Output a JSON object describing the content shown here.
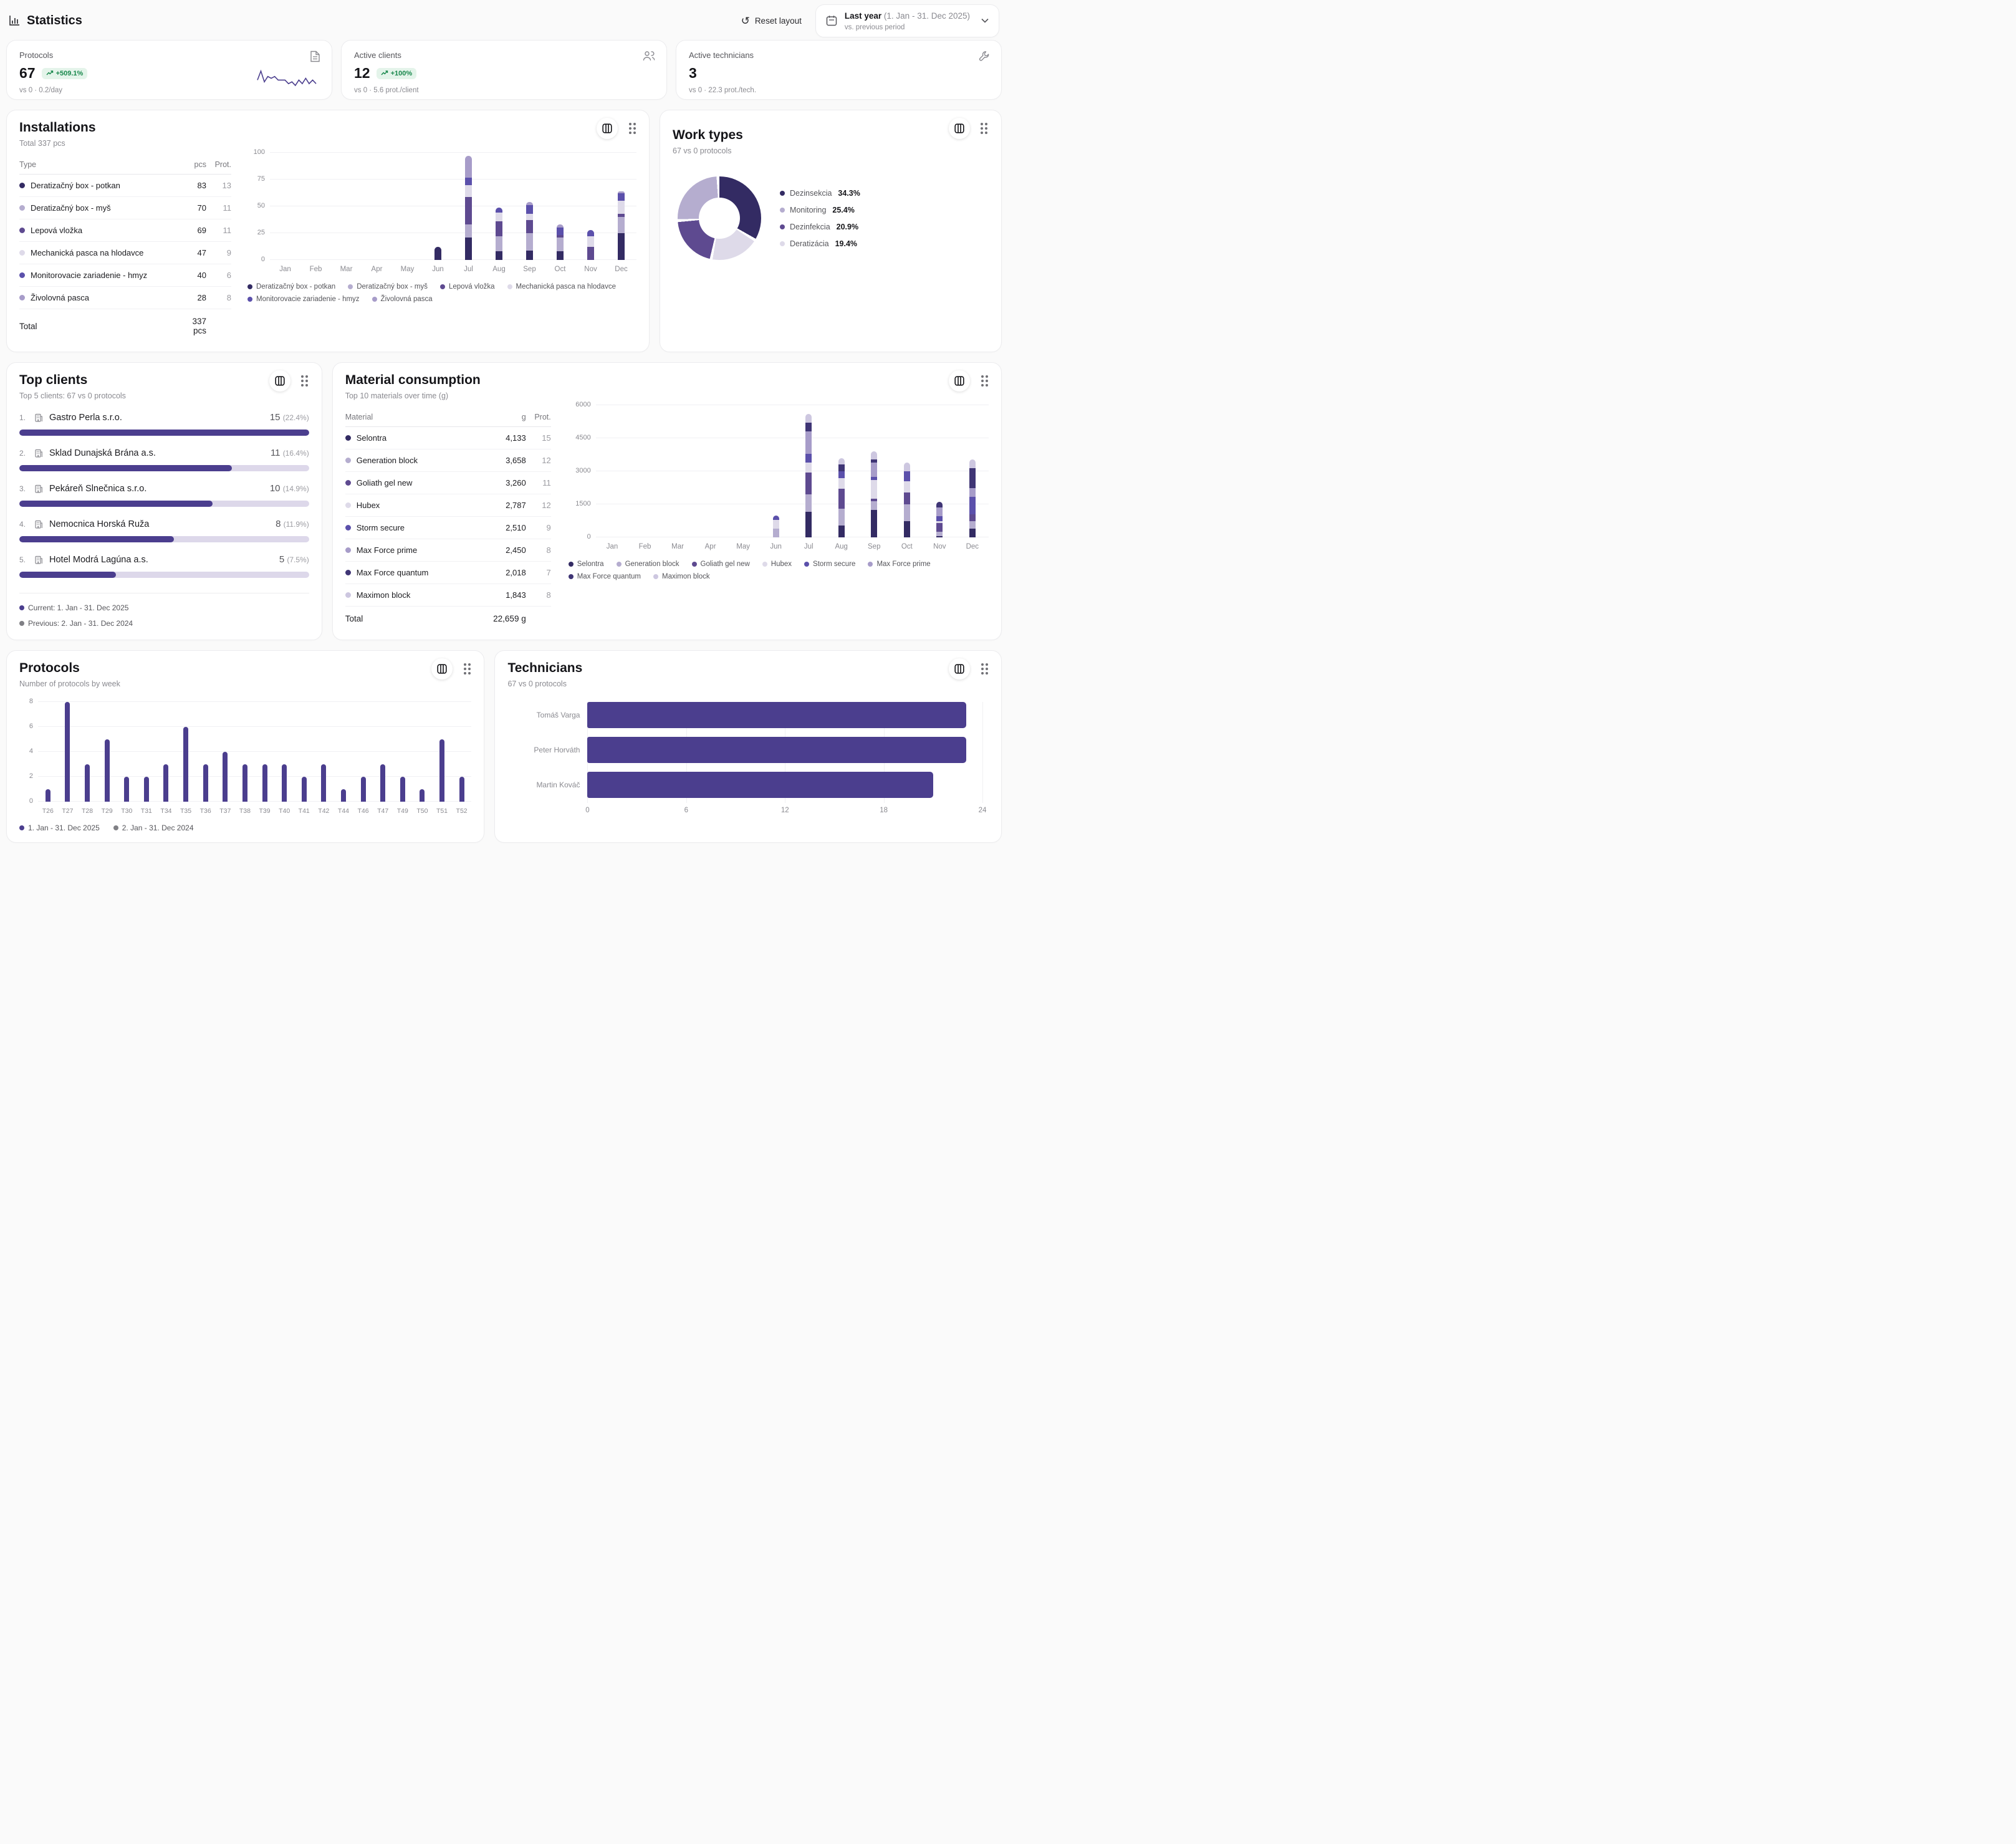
{
  "header": {
    "title": "Statistics",
    "reset_label": "Reset layout",
    "period_label": "Last year",
    "period_range": "(1. Jan - 31. Dec 2025)",
    "period_compare": "vs. previous period"
  },
  "colors": {
    "accent": "#4b3e8e",
    "green_text": "#17874b",
    "green_bg": "#e4f4ea",
    "gray_text": "#8a8a90"
  },
  "kpis": [
    {
      "label": "Protocols",
      "value": "67",
      "badge": "+509.1%",
      "sub": "vs 0 · 0.2/day",
      "icon": "document-icon",
      "sparkline": [
        4,
        9,
        3,
        6,
        5,
        6,
        4,
        4,
        4,
        2,
        3,
        1,
        4,
        2,
        5,
        2,
        4,
        2
      ]
    },
    {
      "label": "Active clients",
      "value": "12",
      "badge": "+100%",
      "sub": "vs 0 · 5.6 prot./client",
      "icon": "people-icon"
    },
    {
      "label": "Active technicians",
      "value": "3",
      "badge": "",
      "sub": "vs 0 · 22.3 prot./tech.",
      "icon": "wrench-icon"
    }
  ],
  "installations": {
    "title": "Installations",
    "subtitle": "Total 337 pcs",
    "table": {
      "headers": [
        "Type",
        "pcs",
        "Prot."
      ],
      "rows": [
        {
          "label": "Deratizačný box - potkan",
          "pcs": "83",
          "prot": "13",
          "color": "#332b63"
        },
        {
          "label": "Deratizačný box - myš",
          "pcs": "70",
          "prot": "11",
          "color": "#b5adcf"
        },
        {
          "label": "Lepová vložka",
          "pcs": "69",
          "prot": "11",
          "color": "#5e4a90"
        },
        {
          "label": "Mechanická pasca na hlodavce",
          "pcs": "47",
          "prot": "9",
          "color": "#dedae9"
        },
        {
          "label": "Monitorovacie zariadenie - hmyz",
          "pcs": "40",
          "prot": "6",
          "color": "#5b50ab"
        },
        {
          "label": "Živolovná pasca",
          "pcs": "28",
          "prot": "8",
          "color": "#a79cc9"
        }
      ],
      "total_label": "Total",
      "total_value": "337 pcs"
    },
    "chart_data": {
      "type": "bar",
      "stacked": true,
      "categories": [
        "Jan",
        "Feb",
        "Mar",
        "Apr",
        "May",
        "Jun",
        "Jul",
        "Aug",
        "Sep",
        "Oct",
        "Nov",
        "Dec"
      ],
      "ylim": [
        0,
        100
      ],
      "yticks": [
        0,
        25,
        50,
        75,
        100
      ],
      "series": [
        {
          "name": "Deratizačný box - potkan",
          "color": "#332b63",
          "values": [
            0,
            0,
            0,
            0,
            0,
            12,
            21,
            8,
            9,
            8,
            0,
            25
          ]
        },
        {
          "name": "Deratizačný box - myš",
          "color": "#b5adcf",
          "values": [
            0,
            0,
            0,
            0,
            0,
            0,
            12,
            14,
            16,
            13,
            0,
            15
          ]
        },
        {
          "name": "Lepová vložka",
          "color": "#5e4a90",
          "values": [
            0,
            0,
            0,
            0,
            0,
            0,
            26,
            14,
            12,
            2,
            12,
            3
          ]
        },
        {
          "name": "Mechanická pasca na hlodavce",
          "color": "#dedae9",
          "values": [
            0,
            0,
            0,
            0,
            0,
            0,
            11,
            8,
            6,
            0,
            10,
            12
          ]
        },
        {
          "name": "Monitorovacie zariadenie - hmyz",
          "color": "#5b50ab",
          "values": [
            0,
            0,
            0,
            0,
            0,
            0,
            7,
            5,
            8,
            7,
            6,
            7
          ]
        },
        {
          "name": "Živolovná pasca",
          "color": "#a79cc9",
          "values": [
            0,
            0,
            0,
            0,
            0,
            0,
            20,
            0,
            3,
            3,
            0,
            2
          ]
        }
      ]
    }
  },
  "work_types": {
    "title": "Work types",
    "subtitle": "67 vs 0 protocols",
    "chart_data": {
      "type": "pie",
      "slices": [
        {
          "name": "Dezinsekcia",
          "pct": 34.3,
          "label": "34.3%",
          "color": "#332b63"
        },
        {
          "name": "Deratizácia",
          "pct": 19.4,
          "label": "19.4%",
          "color": "#dedae9"
        },
        {
          "name": "Dezinfekcia",
          "pct": 20.9,
          "label": "20.9%",
          "color": "#5e4a90"
        },
        {
          "name": "Monitoring",
          "pct": 25.4,
          "label": "25.4%",
          "color": "#b5adcf"
        }
      ],
      "legend_order": [
        0,
        3,
        2,
        1
      ]
    },
    "legend": [
      {
        "name": "Dezinsekcia",
        "pct": "34.3%"
      },
      {
        "name": "Monitoring",
        "pct": "25.4%"
      },
      {
        "name": "Dezinfekcia",
        "pct": "20.9%"
      },
      {
        "name": "Deratizácia",
        "pct": "19.4%"
      }
    ]
  },
  "top_clients": {
    "title": "Top clients",
    "subtitle": "Top 5 clients: 67 vs 0 protocols",
    "items": [
      {
        "rank": "1.",
        "name": "Gastro Perla s.r.o.",
        "value": "15",
        "pct": "(22.4%)",
        "bar_pct": 100
      },
      {
        "rank": "2.",
        "name": "Sklad Dunajská Brána a.s.",
        "value": "11",
        "pct": "(16.4%)",
        "bar_pct": 73.3
      },
      {
        "rank": "3.",
        "name": "Pekáreň Slnečnica s.r.o.",
        "value": "10",
        "pct": "(14.9%)",
        "bar_pct": 66.7
      },
      {
        "rank": "4.",
        "name": "Nemocnica Horská Ruža",
        "value": "8",
        "pct": "(11.9%)",
        "bar_pct": 53.3
      },
      {
        "rank": "5.",
        "name": "Hotel Modrá Lagúna a.s.",
        "value": "5",
        "pct": "(7.5%)",
        "bar_pct": 33.3
      }
    ],
    "legend": [
      {
        "label": "Current: 1. Jan - 31. Dec 2025",
        "color": "#4b3e8e"
      },
      {
        "label": "Previous: 2. Jan - 31. Dec 2024",
        "color": "#808085"
      }
    ]
  },
  "materials": {
    "title": "Material consumption",
    "subtitle": "Top 10 materials over time (g)",
    "table": {
      "headers": [
        "Material",
        "g",
        "Prot."
      ],
      "rows": [
        {
          "label": "Selontra",
          "g": "4,133",
          "prot": "15",
          "color": "#332b63"
        },
        {
          "label": "Generation block",
          "g": "3,658",
          "prot": "12",
          "color": "#b5adcf"
        },
        {
          "label": "Goliath gel new",
          "g": "3,260",
          "prot": "11",
          "color": "#5e4a90"
        },
        {
          "label": "Hubex",
          "g": "2,787",
          "prot": "12",
          "color": "#dedae9"
        },
        {
          "label": "Storm secure",
          "g": "2,510",
          "prot": "9",
          "color": "#5b50ab"
        },
        {
          "label": "Max Force prime",
          "g": "2,450",
          "prot": "8",
          "color": "#a79cc9"
        },
        {
          "label": "Max Force quantum",
          "g": "2,018",
          "prot": "7",
          "color": "#3f3575"
        },
        {
          "label": "Maximon block",
          "g": "1,843",
          "prot": "8",
          "color": "#cdc7e0"
        }
      ],
      "total_label": "Total",
      "total_value": "22,659 g"
    },
    "chart_data": {
      "type": "bar",
      "stacked": true,
      "categories": [
        "Jan",
        "Feb",
        "Mar",
        "Apr",
        "May",
        "Jun",
        "Jul",
        "Aug",
        "Sep",
        "Oct",
        "Nov",
        "Dec"
      ],
      "ylim": [
        0,
        6000
      ],
      "yticks": [
        0,
        1500,
        3000,
        4500,
        6000
      ],
      "series": [
        {
          "name": "Selontra",
          "color": "#332b63",
          "values": [
            0,
            0,
            0,
            0,
            0,
            0,
            1150,
            550,
            1250,
            750,
            50,
            383
          ]
        },
        {
          "name": "Generation block",
          "color": "#b5adcf",
          "values": [
            0,
            0,
            0,
            0,
            0,
            400,
            800,
            750,
            400,
            750,
            200,
            358
          ]
        },
        {
          "name": "Goliath gel new",
          "color": "#5e4a90",
          "values": [
            0,
            0,
            0,
            0,
            0,
            0,
            1000,
            900,
            100,
            550,
            410,
            300
          ]
        },
        {
          "name": "Hubex",
          "color": "#dedae9",
          "values": [
            0,
            0,
            0,
            0,
            0,
            400,
            450,
            500,
            850,
            500,
            87,
            0
          ]
        },
        {
          "name": "Storm secure",
          "color": "#5b50ab",
          "values": [
            0,
            0,
            0,
            0,
            0,
            200,
            400,
            300,
            150,
            450,
            210,
            800
          ]
        },
        {
          "name": "Max Force prime",
          "color": "#a79cc9",
          "values": [
            0,
            0,
            0,
            0,
            0,
            0,
            1000,
            0,
            650,
            0,
            400,
            400
          ]
        },
        {
          "name": "Max Force quantum",
          "color": "#3f3575",
          "values": [
            0,
            0,
            0,
            0,
            0,
            0,
            400,
            300,
            150,
            0,
            268,
            900
          ]
        },
        {
          "name": "Maximon block",
          "color": "#cdc7e0",
          "values": [
            0,
            0,
            0,
            0,
            0,
            0,
            400,
            300,
            350,
            393,
            0,
            400
          ]
        }
      ]
    }
  },
  "protocols_week": {
    "title": "Protocols",
    "subtitle": "Number of protocols by week",
    "chart_data": {
      "type": "bar",
      "categories": [
        "T26",
        "T27",
        "T28",
        "T29",
        "T30",
        "T31",
        "T34",
        "T35",
        "T36",
        "T37",
        "T38",
        "T39",
        "T40",
        "T41",
        "T42",
        "T44",
        "T46",
        "T47",
        "T49",
        "T50",
        "T51",
        "T52"
      ],
      "values": [
        1,
        8,
        3,
        5,
        2,
        2,
        3,
        6,
        3,
        4,
        3,
        3,
        3,
        2,
        3,
        1,
        2,
        3,
        2,
        1,
        5,
        2
      ],
      "ylim": [
        0,
        8
      ],
      "yticks": [
        0,
        2,
        4,
        6,
        8
      ],
      "bar_color": "#4b3e8e"
    },
    "legend": [
      {
        "label": "1. Jan - 31. Dec 2025",
        "color": "#4b3e8e"
      },
      {
        "label": "2. Jan - 31. Dec 2024",
        "color": "#808085"
      }
    ]
  },
  "technicians": {
    "title": "Technicians",
    "subtitle": "67 vs 0 protocols",
    "chart_data": {
      "type": "bar",
      "orientation": "horizontal",
      "categories": [
        "Tomáš Varga",
        "Peter Horváth",
        "Martin Kováč"
      ],
      "values": [
        23,
        23,
        21
      ],
      "xlim": [
        0,
        24
      ],
      "xticks": [
        0,
        6,
        12,
        18,
        24
      ],
      "bar_color": "#4b3e8e"
    }
  }
}
